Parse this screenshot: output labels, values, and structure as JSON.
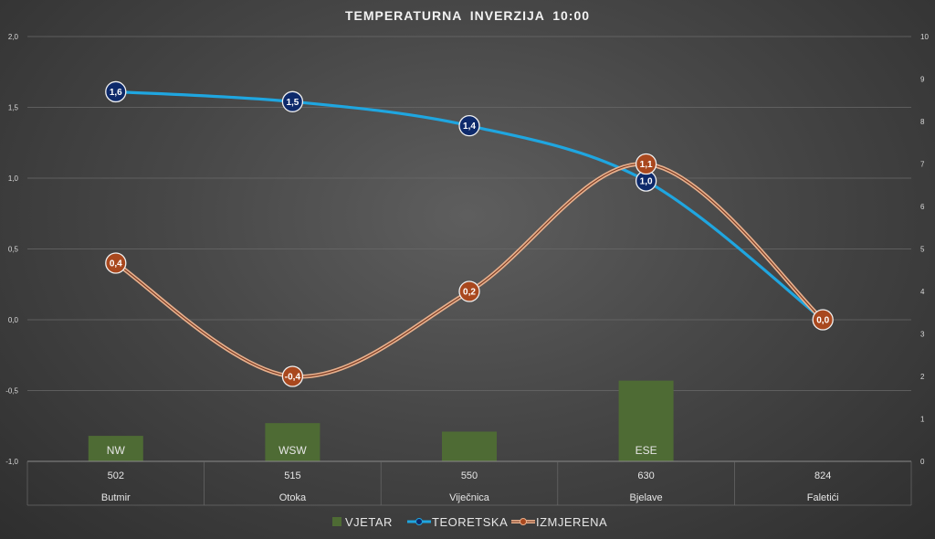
{
  "chart_data": {
    "type": "line",
    "title": "TEMPERATURNA  INVERZIJA  10:00",
    "categories": [
      {
        "top": "502",
        "bottom": "Butmir"
      },
      {
        "top": "515",
        "bottom": "Otoka"
      },
      {
        "top": "550",
        "bottom": "Viječnica"
      },
      {
        "top": "630",
        "bottom": "Bjelave"
      },
      {
        "top": "824",
        "bottom": "Faletići"
      }
    ],
    "y_left": {
      "min": -1.0,
      "max": 2.0,
      "step": 0.5,
      "ticks": [
        "-1,0",
        "-0,5",
        "0,0",
        "0,5",
        "1,0",
        "1,5",
        "2,0"
      ]
    },
    "y_right": {
      "min": 0,
      "max": 10,
      "step": 1,
      "ticks": [
        "0",
        "1",
        "2",
        "3",
        "4",
        "5",
        "6",
        "7",
        "8",
        "9",
        "10"
      ]
    },
    "series": [
      {
        "name": "VJETAR",
        "type": "bar",
        "axis": "right",
        "color": "#4e6b34",
        "values": [
          0.6,
          0.9,
          0.7,
          1.9,
          null
        ],
        "labels": [
          "NW",
          "WSW",
          "",
          "ESE",
          ""
        ]
      },
      {
        "name": "TEORETSKA",
        "type": "line",
        "axis": "left",
        "color": "#1fa6e0",
        "marker_color": "#0e2a6b",
        "values": [
          1.61,
          1.54,
          1.37,
          0.98,
          0.0
        ],
        "labels": [
          "1,6",
          "1,5",
          "1,4",
          "1,0",
          null
        ]
      },
      {
        "name": "IZMJERENA",
        "type": "line",
        "axis": "left",
        "color": "#e7b08d",
        "marker_color": "#a9481e",
        "values": [
          0.4,
          -0.4,
          0.2,
          1.1,
          0.0
        ],
        "labels": [
          "0,4",
          "-0,4",
          "0,2",
          "1,1",
          "0,0"
        ]
      }
    ],
    "legend": {
      "position": "bottom",
      "items": [
        "VJETAR",
        "TEORETSKA",
        "IZMJERENA"
      ]
    },
    "grid": true
  }
}
